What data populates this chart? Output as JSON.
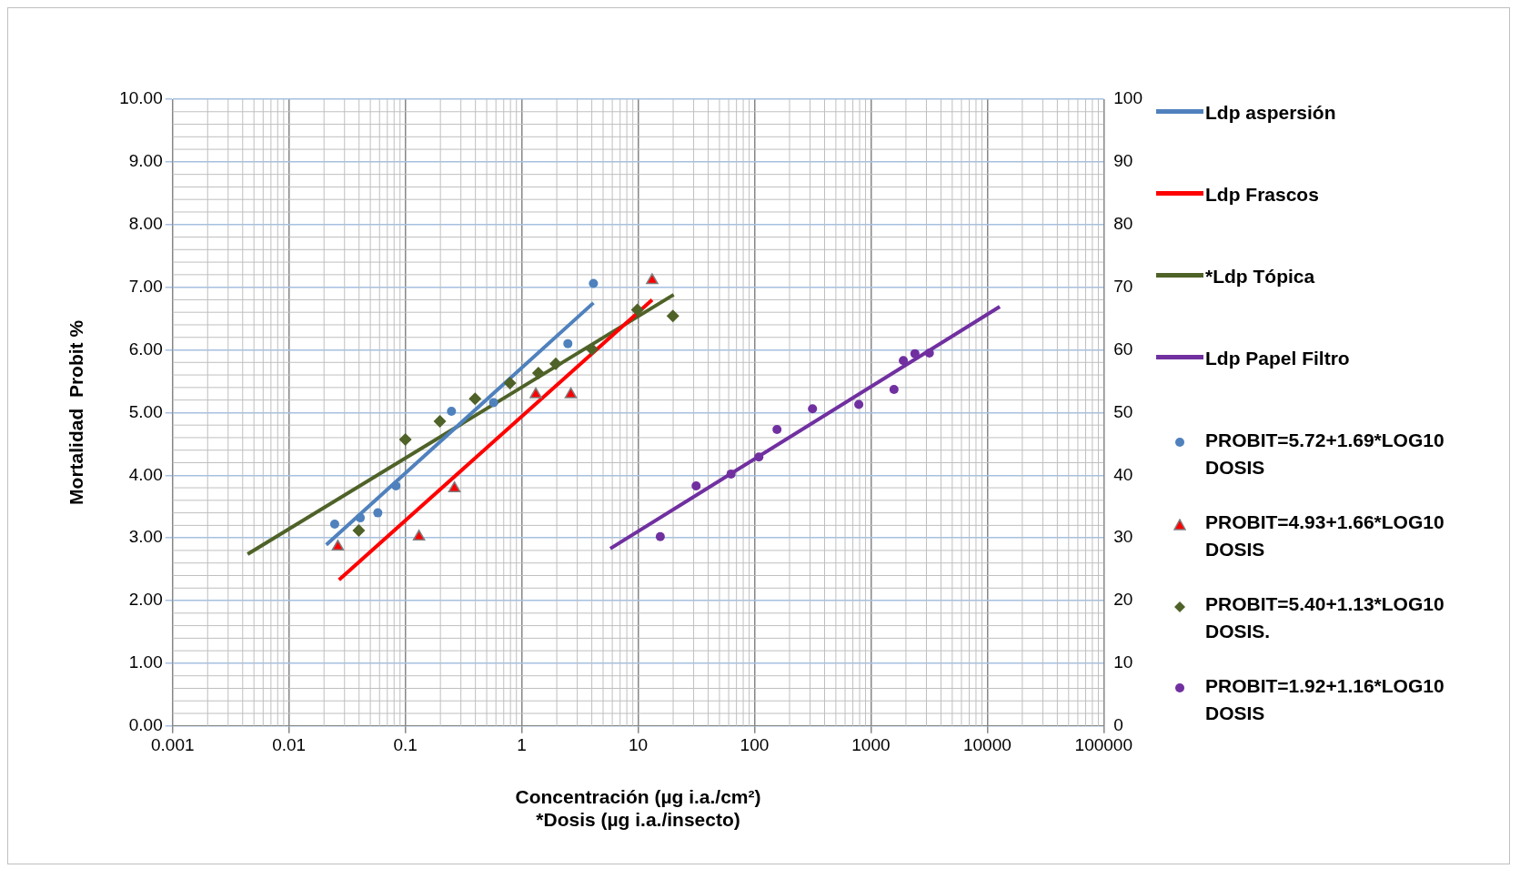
{
  "chart_data": {
    "type": "scatter",
    "xlabel": "Concentración (µg i.a./cm²)\n*Dosis (µg i.a./insecto)",
    "ylabel": "Mortalidad  Probit %",
    "log": "x",
    "grid": true,
    "legend": "right",
    "xlim": [
      0.001,
      100000
    ],
    "xticks": [
      0.001,
      0.01,
      0.1,
      1,
      10,
      100,
      1000,
      10000,
      100000
    ],
    "ylim": [
      0,
      10
    ],
    "yticks": [
      {
        "value": 0,
        "label": "0.00"
      },
      {
        "value": 1,
        "label": "1.00"
      },
      {
        "value": 2,
        "label": "2.00"
      },
      {
        "value": 3,
        "label": "3.00"
      },
      {
        "value": 4,
        "label": "4.00"
      },
      {
        "value": 5,
        "label": "5.00"
      },
      {
        "value": 6,
        "label": "6.00"
      },
      {
        "value": 7,
        "label": "7.00"
      },
      {
        "value": 8,
        "label": "8.00"
      },
      {
        "value": 9,
        "label": "9.00"
      },
      {
        "value": 10,
        "label": "10.00"
      }
    ],
    "y2lim": [
      0,
      100
    ],
    "y2ticks": [
      0,
      10,
      20,
      30,
      40,
      50,
      60,
      70,
      80,
      90,
      100
    ],
    "series": [
      {
        "name": "Ldp aspersión",
        "type": "line",
        "color": "#4f81bd",
        "marker": "none",
        "x": [
          0.0209,
          4.13
        ],
        "values": [
          2.89,
          6.75
        ]
      },
      {
        "name": "Ldp Frascos",
        "type": "line",
        "color": "#ff0000",
        "marker": "none",
        "x": [
          0.0269,
          13.2
        ],
        "values": [
          2.33,
          6.8
        ]
      },
      {
        "name": "*Ldp Tópica",
        "type": "line",
        "color": "#4f6228",
        "marker": "none",
        "x": [
          0.00441,
          20.2
        ],
        "values": [
          2.74,
          6.88
        ]
      },
      {
        "name": "Ldp Papel Filtro",
        "type": "line",
        "color": "#7030a0",
        "marker": "none",
        "x": [
          5.77,
          12800
        ],
        "values": [
          2.83,
          6.69
        ]
      },
      {
        "name": "PROBIT=5.72+1.69*LOG10 DOSIS",
        "color": "#4f81bd",
        "marker": "circle",
        "x": [
          0.0247,
          0.041,
          0.058,
          0.083,
          0.249,
          0.573,
          2.49,
          4.13
        ],
        "values": [
          3.22,
          3.32,
          3.4,
          3.83,
          5.02,
          5.16,
          6.1,
          7.06
        ]
      },
      {
        "name": "PROBIT=4.93+1.66*LOG10 DOSIS",
        "color": "#ff0000",
        "marker": "triangle",
        "x": [
          0.0263,
          0.131,
          0.264,
          1.32,
          2.64,
          13.2
        ],
        "values": [
          2.86,
          3.02,
          3.79,
          5.29,
          5.29,
          7.11
        ]
      },
      {
        "name": "PROBIT=5.40+1.13*LOG10 DOSIS.",
        "color": "#4f6228",
        "marker": "diamond",
        "x": [
          0.0398,
          0.1,
          0.198,
          0.397,
          0.792,
          1.39,
          1.96,
          4.01,
          9.84,
          19.9
        ],
        "values": [
          3.12,
          4.57,
          4.86,
          5.22,
          5.47,
          5.63,
          5.78,
          6.01,
          6.64,
          6.54
        ]
      },
      {
        "name": "PROBIT=1.92+1.16*LOG10 DOSIS",
        "color": "#7030a0",
        "marker": "circle",
        "x": [
          15.5,
          31.5,
          62.9,
          109,
          156,
          315,
          787,
          1580,
          1900,
          2390,
          3180
        ],
        "values": [
          3.02,
          3.83,
          4.02,
          4.29,
          4.73,
          5.06,
          5.13,
          5.37,
          5.83,
          5.94,
          5.95
        ]
      }
    ]
  }
}
